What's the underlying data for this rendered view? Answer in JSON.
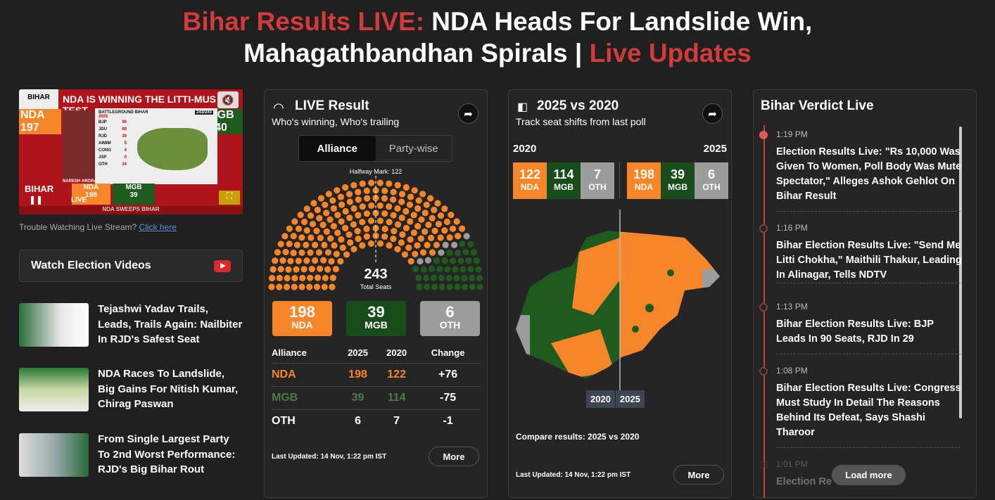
{
  "headline": {
    "part1": "Bihar Results LIVE:",
    "part2": " NDA Heads For Landslide Win,",
    "part3": "Mahagathbandhan Spirals | ",
    "part4": "Live Updates"
  },
  "video": {
    "banner": "NDA IS WINNING THE LITTI-MUS TEST",
    "nda_label": "NDA",
    "nda_value": "197",
    "mgb_label": "MGB",
    "mgb_value": "40",
    "panel_title": "BATTLEGROUND BIHAR",
    "panel_year": "2025",
    "panel_count": "243/243",
    "parties": [
      {
        "name": "BJP",
        "v": "90"
      },
      {
        "name": "JDU",
        "v": "80"
      },
      {
        "name": "RJD",
        "v": "30"
      },
      {
        "name": "AIMIM",
        "v": "5"
      },
      {
        "name": "CONG",
        "v": "4"
      },
      {
        "name": "JSP",
        "v": "0"
      },
      {
        "name": "OTH",
        "v": "34"
      }
    ],
    "anchor": "NARESH ARORA",
    "bottom_nda": "198",
    "bottom_mgb": "39",
    "ticker": "NDA SWEEPS BIHAR",
    "live": "LIVE",
    "bihar": "BIHAR"
  },
  "trouble": {
    "text": "Trouble Watching Live Stream? ",
    "link": "Click here"
  },
  "watch_videos": "Watch Election Videos",
  "stories": [
    {
      "title": "Tejashwi Yadav Trails, Leads, Trails Again: Nailbiter In RJD's Safest Seat"
    },
    {
      "title": "NDA Races To Landslide, Big Gains For Nitish Kumar, Chirag Paswan"
    },
    {
      "title": "From Single Largest Party To 2nd Worst Performance: RJD's Big Bihar Rout"
    }
  ],
  "live_result": {
    "title": "LIVE Result",
    "subtitle": "Who's winning, Who's trailing",
    "tabs": [
      "Alliance",
      "Party-wise"
    ],
    "halfway": "Halfway Mark: 122",
    "total": "243",
    "total_label": "Total Seats",
    "boxes": [
      {
        "v": "198",
        "l": "NDA"
      },
      {
        "v": "39",
        "l": "MGB"
      },
      {
        "v": "6",
        "l": "OTH"
      }
    ],
    "headers": [
      "Alliance",
      "2025",
      "2020",
      "Change"
    ],
    "rows": [
      {
        "a": "NDA",
        "y25": "198",
        "y20": "122",
        "c": "+76"
      },
      {
        "a": "MGB",
        "y25": "39",
        "y20": "114",
        "c": "-75"
      },
      {
        "a": "OTH",
        "y25": "6",
        "y20": "7",
        "c": "-1"
      }
    ],
    "updated": "Last Updated: 14 Nov, 1:22 pm IST",
    "more": "More"
  },
  "chart_data": {
    "type": "hemicycle",
    "total": 243,
    "majority": 122,
    "series": [
      {
        "name": "NDA",
        "value": 198,
        "color": "#f7862a"
      },
      {
        "name": "OTH",
        "value": 6,
        "color": "#9c9c9c"
      },
      {
        "name": "MGB",
        "value": 39,
        "color": "#1f5a1f"
      }
    ]
  },
  "compare": {
    "title": "2025 vs 2020",
    "subtitle": "Track seat shifts from last poll",
    "y2020": "2020",
    "y2025": "2025",
    "left": [
      {
        "v": "122",
        "l": "NDA"
      },
      {
        "v": "114",
        "l": "MGB"
      },
      {
        "v": "7",
        "l": "OTH"
      }
    ],
    "right": [
      {
        "v": "198",
        "l": "NDA"
      },
      {
        "v": "39",
        "l": "MGB"
      },
      {
        "v": "6",
        "l": "OTH"
      }
    ],
    "slider": [
      "2020",
      "2025"
    ],
    "caption": "Compare results: 2025 vs 2020",
    "updated": "Last Updated: 14 Nov, 1:22 pm IST",
    "more": "More"
  },
  "verdict": {
    "title": "Bihar Verdict Live",
    "load_more": "Load more",
    "events": [
      {
        "time": "1:19 PM",
        "text": "Election Results Live: \"Rs 10,000 Was Given To Women, Poll Body Was Mute Spectator,\" Alleges Ashok Gehlot On Bihar Result"
      },
      {
        "time": "1:16 PM",
        "text": "Bihar Election Results Live: \"Send Me Litti Chokha,\" Maithili Thakur, Leading In Alinagar, Tells NDTV"
      },
      {
        "time": "1:13 PM",
        "text": "Bihar Election Results Live: BJP Leads In 90 Seats, RJD In 29"
      },
      {
        "time": "1:08 PM",
        "text": "Bihar Election Results Live: Congress Must Study In Detail The Reasons Behind Its Defeat, Says Shashi Tharoor"
      },
      {
        "time": "1:01 PM",
        "text": "Election Re"
      }
    ]
  }
}
